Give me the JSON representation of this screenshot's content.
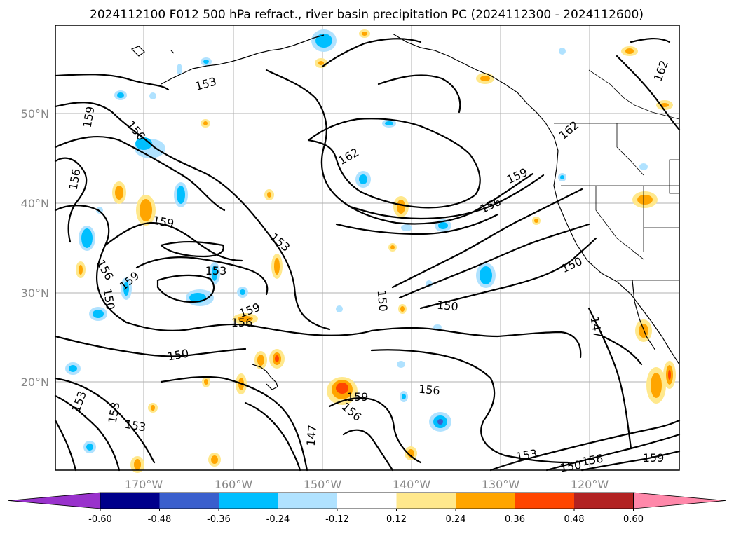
{
  "title": "2024112100 F012 500 hPa refract., river basin precipitation PC (2024112300 - 2024112600)",
  "map": {
    "lat_labels": [
      {
        "text": "50°N",
        "lat": 50
      },
      {
        "text": "40°N",
        "lat": 40
      },
      {
        "text": "30°N",
        "lat": 30
      },
      {
        "text": "20°N",
        "lat": 20
      }
    ],
    "lon_labels": [
      {
        "text": "170°W",
        "lon": -170
      },
      {
        "text": "160°W",
        "lon": -160
      },
      {
        "text": "150°W",
        "lon": -150
      },
      {
        "text": "140°W",
        "lon": -140
      },
      {
        "text": "130°W",
        "lon": -130
      },
      {
        "text": "120°W",
        "lon": -120
      }
    ],
    "contour_labels": [
      "153",
      "159",
      "156",
      "156",
      "159",
      "162",
      "159",
      "156",
      "153",
      "153",
      "150",
      "150",
      "156",
      "159",
      "150",
      "150",
      "150",
      "147",
      "159",
      "156",
      "153",
      "153",
      "159",
      "156",
      "153",
      "147",
      "156",
      "153",
      "150",
      "156",
      "159",
      "162",
      "162"
    ]
  },
  "colorbar": {
    "ticks": [
      "-0.60",
      "-0.48",
      "-0.36",
      "-0.24",
      "-0.12",
      "0.12",
      "0.24",
      "0.36",
      "0.48",
      "0.60"
    ],
    "colors": [
      "#9932CC",
      "#00008B",
      "#3A5FCD",
      "#00BFFF",
      "#B0E2FF",
      "#FFFFFF",
      "#FFE88C",
      "#FFA500",
      "#FF4500",
      "#B22222",
      "#FF88AA"
    ]
  }
}
